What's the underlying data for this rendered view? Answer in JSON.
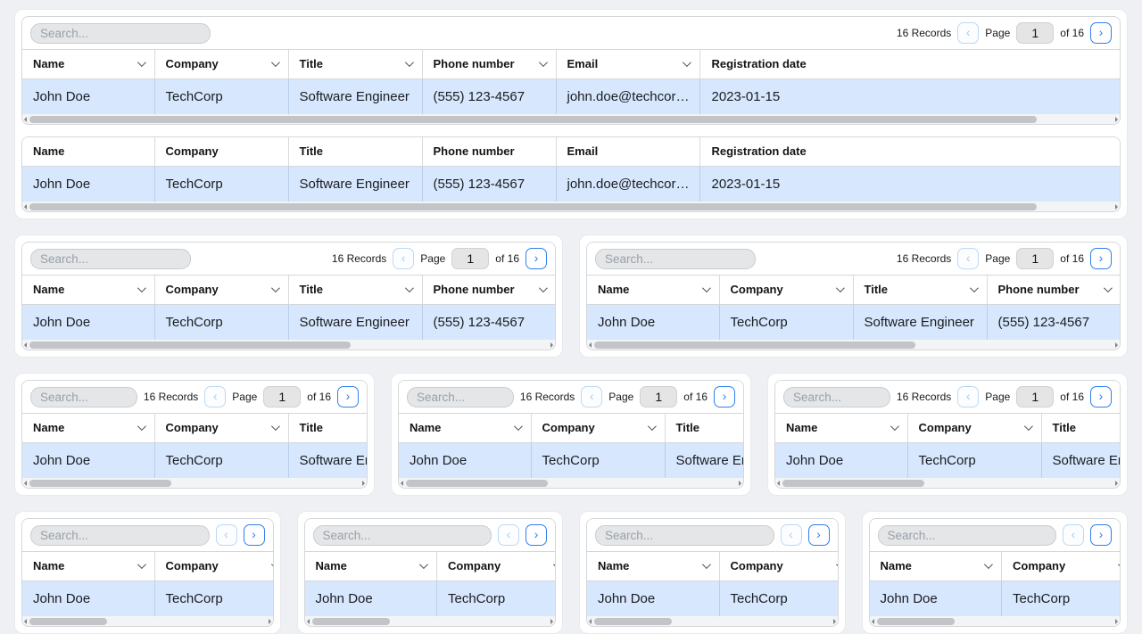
{
  "toolbar": {
    "search_placeholder": "Search...",
    "records": "16 Records",
    "page_label": "Page",
    "page_value": "1",
    "of_label": "of 16",
    "prev_icon": "‹",
    "next_icon": "›"
  },
  "table": {
    "columns": [
      {
        "label": "Name",
        "sortable": true
      },
      {
        "label": "Company",
        "sortable": true
      },
      {
        "label": "Title",
        "sortable": true
      },
      {
        "label": "Phone number",
        "sortable": true
      },
      {
        "label": "Email",
        "sortable": true
      },
      {
        "label": "Registration date",
        "sortable": false
      }
    ],
    "row": [
      "John Doe",
      "TechCorp",
      "Software Engineer",
      "(555) 123-4567",
      "john.doe@techcor…",
      "2023-01-15"
    ]
  },
  "colors": {
    "accent": "#2f80ed",
    "row_highlight": "#d7e7fd",
    "page_background": "#eef0f3",
    "search_background": "#e4e6e8"
  },
  "layout_rows": [
    {
      "css": "row1",
      "cards": [
        {
          "grids": [
            {
              "toolbar": "full",
              "sortable": true,
              "thumb_pct": 93
            },
            {
              "toolbar": "none",
              "sortable": false,
              "thumb_pct": 93
            }
          ]
        }
      ]
    },
    {
      "css": "row2",
      "cards": [
        {
          "grids": [
            {
              "toolbar": "full",
              "sortable": true,
              "thumb_pct": 62
            }
          ]
        },
        {
          "grids": [
            {
              "toolbar": "full",
              "sortable": true,
              "thumb_pct": 62
            }
          ]
        }
      ]
    },
    {
      "css": "row3",
      "cards": [
        {
          "grids": [
            {
              "toolbar": "full",
              "sortable": true,
              "thumb_pct": 43
            }
          ]
        },
        {
          "grids": [
            {
              "toolbar": "full",
              "sortable": true,
              "thumb_pct": 43
            }
          ]
        },
        {
          "grids": [
            {
              "toolbar": "full",
              "sortable": true,
              "thumb_pct": 43
            }
          ]
        }
      ]
    },
    {
      "css": "row4",
      "cards": [
        {
          "grids": [
            {
              "toolbar": "compact",
              "sortable": true,
              "thumb_pct": 33
            }
          ]
        },
        {
          "grids": [
            {
              "toolbar": "compact",
              "sortable": true,
              "thumb_pct": 33
            }
          ]
        },
        {
          "grids": [
            {
              "toolbar": "compact",
              "sortable": true,
              "thumb_pct": 33
            }
          ]
        },
        {
          "grids": [
            {
              "toolbar": "compact",
              "sortable": true,
              "thumb_pct": 33
            }
          ]
        }
      ]
    }
  ]
}
